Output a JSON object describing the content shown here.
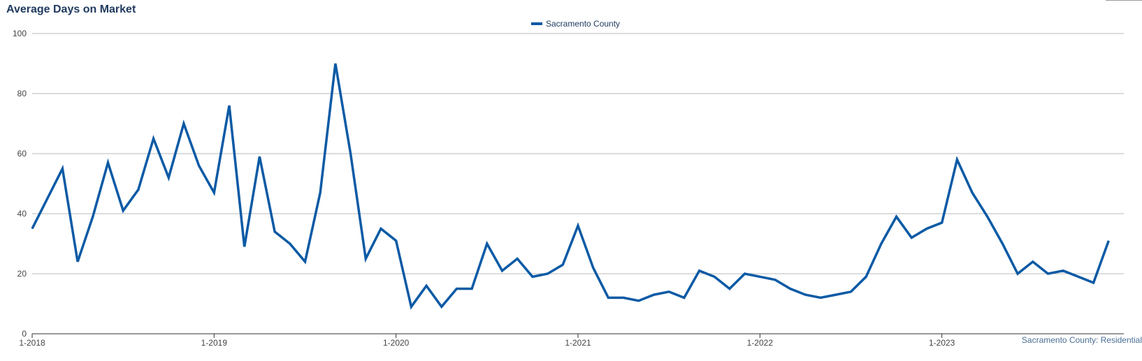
{
  "footer_note": "Sacramento County: Residential",
  "chart_data": {
    "type": "line",
    "title": "Average Days on Market",
    "xlabel": "",
    "ylabel": "",
    "ylim": [
      0,
      100
    ],
    "yticks": [
      0,
      20,
      40,
      60,
      80,
      100
    ],
    "xtick_labels": [
      "1-2018",
      "1-2019",
      "1-2020",
      "1-2021",
      "1-2022",
      "1-2023"
    ],
    "grid": true,
    "legend_position": "top-center",
    "colors": {
      "series": "#0b5aa5",
      "grid": "#b9b9b9",
      "axis": "#333333"
    },
    "x": [
      "1-2018",
      "2-2018",
      "3-2018",
      "4-2018",
      "5-2018",
      "6-2018",
      "7-2018",
      "8-2018",
      "9-2018",
      "10-2018",
      "11-2018",
      "12-2018",
      "1-2019",
      "2-2019",
      "3-2019",
      "4-2019",
      "5-2019",
      "6-2019",
      "7-2019",
      "8-2019",
      "9-2019",
      "10-2019",
      "11-2019",
      "12-2019",
      "1-2020",
      "2-2020",
      "3-2020",
      "4-2020",
      "5-2020",
      "6-2020",
      "7-2020",
      "8-2020",
      "9-2020",
      "10-2020",
      "11-2020",
      "12-2020",
      "1-2021",
      "2-2021",
      "3-2021",
      "4-2021",
      "5-2021",
      "6-2021",
      "7-2021",
      "8-2021",
      "9-2021",
      "10-2021",
      "11-2021",
      "12-2021",
      "1-2022",
      "2-2022",
      "3-2022",
      "4-2022",
      "5-2022",
      "6-2022",
      "7-2022",
      "8-2022",
      "9-2022",
      "10-2022",
      "11-2022",
      "12-2022",
      "1-2023",
      "2-2023",
      "3-2023",
      "4-2023",
      "5-2023",
      "6-2023",
      "7-2023",
      "8-2023",
      "9-2023",
      "10-2023",
      "11-2023",
      "12-2023"
    ],
    "series": [
      {
        "name": "Sacramento County",
        "values": [
          35,
          45,
          55,
          24,
          39,
          57,
          41,
          48,
          65,
          52,
          70,
          56,
          47,
          76,
          29,
          59,
          34,
          30,
          24,
          47,
          90,
          60,
          25,
          35,
          31,
          9,
          16,
          9,
          15,
          15,
          30,
          21,
          25,
          19,
          20,
          23,
          36,
          22,
          12,
          12,
          11,
          13,
          14,
          12,
          21,
          19,
          15,
          20,
          19,
          18,
          15,
          13,
          12,
          13,
          14,
          19,
          30,
          39,
          32,
          35,
          37,
          58,
          47,
          39,
          30,
          20,
          24,
          20,
          21,
          19,
          17,
          31
        ]
      }
    ]
  }
}
